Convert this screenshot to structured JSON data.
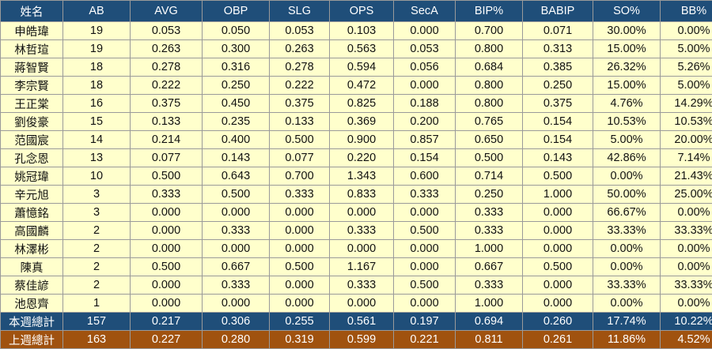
{
  "headers": [
    "姓名",
    "AB",
    "AVG",
    "OBP",
    "SLG",
    "OPS",
    "SecA",
    "BIP%",
    "BABIP",
    "SO%",
    "BB%"
  ],
  "players": [
    [
      "申皓瑋",
      "19",
      "0.053",
      "0.050",
      "0.053",
      "0.103",
      "0.000",
      "0.700",
      "0.071",
      "30.00%",
      "0.00%"
    ],
    [
      "林哲瑄",
      "19",
      "0.263",
      "0.300",
      "0.263",
      "0.563",
      "0.053",
      "0.800",
      "0.313",
      "15.00%",
      "5.00%"
    ],
    [
      "蔣智賢",
      "18",
      "0.278",
      "0.316",
      "0.278",
      "0.594",
      "0.056",
      "0.684",
      "0.385",
      "26.32%",
      "5.26%"
    ],
    [
      "李宗賢",
      "18",
      "0.222",
      "0.250",
      "0.222",
      "0.472",
      "0.000",
      "0.800",
      "0.250",
      "15.00%",
      "5.00%"
    ],
    [
      "王正棠",
      "16",
      "0.375",
      "0.450",
      "0.375",
      "0.825",
      "0.188",
      "0.800",
      "0.375",
      "4.76%",
      "14.29%"
    ],
    [
      "劉俊豪",
      "15",
      "0.133",
      "0.235",
      "0.133",
      "0.369",
      "0.200",
      "0.765",
      "0.154",
      "10.53%",
      "10.53%"
    ],
    [
      "范國宸",
      "14",
      "0.214",
      "0.400",
      "0.500",
      "0.900",
      "0.857",
      "0.650",
      "0.154",
      "5.00%",
      "20.00%"
    ],
    [
      "孔念恩",
      "13",
      "0.077",
      "0.143",
      "0.077",
      "0.220",
      "0.154",
      "0.500",
      "0.143",
      "42.86%",
      "7.14%"
    ],
    [
      "姚冠瑋",
      "10",
      "0.500",
      "0.643",
      "0.700",
      "1.343",
      "0.600",
      "0.714",
      "0.500",
      "0.00%",
      "21.43%"
    ],
    [
      "辛元旭",
      "3",
      "0.333",
      "0.500",
      "0.333",
      "0.833",
      "0.333",
      "0.250",
      "1.000",
      "50.00%",
      "25.00%"
    ],
    [
      "蕭憶銘",
      "3",
      "0.000",
      "0.000",
      "0.000",
      "0.000",
      "0.000",
      "0.333",
      "0.000",
      "66.67%",
      "0.00%"
    ],
    [
      "高國麟",
      "2",
      "0.000",
      "0.333",
      "0.000",
      "0.333",
      "0.500",
      "0.333",
      "0.000",
      "33.33%",
      "33.33%"
    ],
    [
      "林澤彬",
      "2",
      "0.000",
      "0.000",
      "0.000",
      "0.000",
      "0.000",
      "1.000",
      "0.000",
      "0.00%",
      "0.00%"
    ],
    [
      "陳真",
      "2",
      "0.500",
      "0.667",
      "0.500",
      "1.167",
      "0.000",
      "0.667",
      "0.500",
      "0.00%",
      "0.00%"
    ],
    [
      "蔡佳諺",
      "2",
      "0.000",
      "0.333",
      "0.000",
      "0.333",
      "0.500",
      "0.333",
      "0.000",
      "33.33%",
      "33.33%"
    ],
    [
      "池恩齊",
      "1",
      "0.000",
      "0.000",
      "0.000",
      "0.000",
      "0.000",
      "1.000",
      "0.000",
      "0.00%",
      "0.00%"
    ]
  ],
  "totals": {
    "this_week": [
      "本週總計",
      "157",
      "0.217",
      "0.306",
      "0.255",
      "0.561",
      "0.197",
      "0.694",
      "0.260",
      "17.74%",
      "10.22%"
    ],
    "last_week": [
      "上週總計",
      "163",
      "0.227",
      "0.280",
      "0.319",
      "0.599",
      "0.221",
      "0.811",
      "0.261",
      "11.86%",
      "4.52%"
    ]
  },
  "colors": {
    "header_bg": "#1f4e79",
    "row_bg": "#ffffcc",
    "this_week_bg": "#1f4e79",
    "last_week_bg": "#a0520f"
  }
}
